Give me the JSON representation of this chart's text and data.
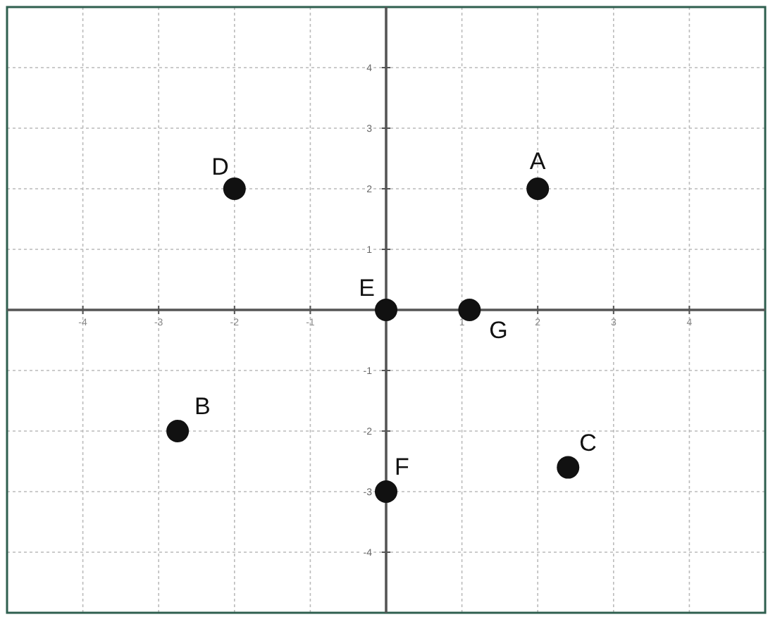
{
  "chart_data": {
    "type": "scatter",
    "x": [
      2,
      -2.75,
      2.4,
      -2,
      0,
      0,
      1.1
    ],
    "values": [
      2,
      -2,
      -2.6,
      2,
      0,
      -3,
      0
    ],
    "color": "#111111",
    "marker": "circle",
    "grid": true,
    "xlim": [
      -5,
      5
    ],
    "ylim": [
      -5,
      5
    ],
    "xticks": [
      -4,
      -3,
      -2,
      -1,
      1,
      2,
      3,
      4
    ],
    "yticks": [
      -4,
      -3,
      -2,
      -1,
      1,
      2,
      3,
      4
    ],
    "annotations": [
      {
        "text": "A",
        "x": 2,
        "y": 2
      },
      {
        "text": "B",
        "x": -2.75,
        "y": -2
      },
      {
        "text": "C",
        "x": 2.4,
        "y": -2.6
      },
      {
        "text": "D",
        "x": -2,
        "y": 2
      },
      {
        "text": "E",
        "x": 0,
        "y": 0
      },
      {
        "text": "F",
        "x": 0,
        "y": -3
      },
      {
        "text": "G",
        "x": 1.1,
        "y": 0
      }
    ]
  }
}
